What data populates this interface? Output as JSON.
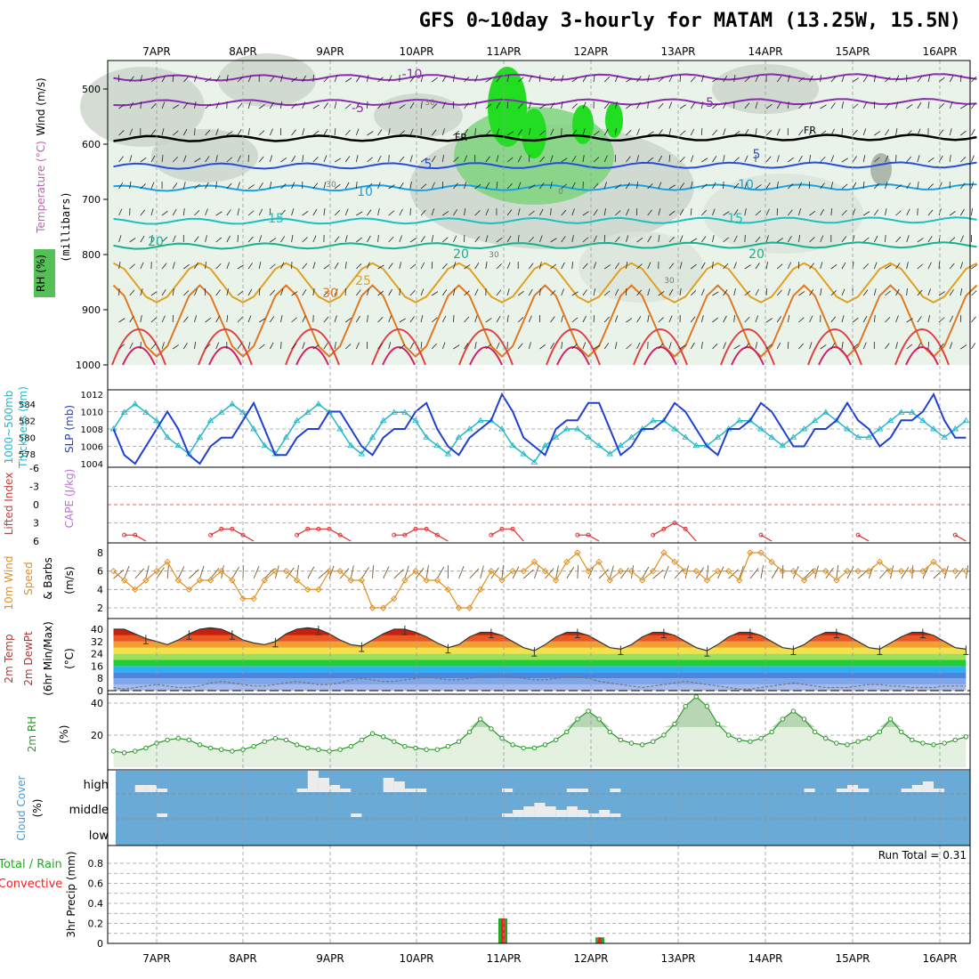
{
  "title": "GFS 0~10day 3-hourly for MATAM (13.25W, 15.5N)",
  "dates": [
    "7APR",
    "8APR",
    "9APR",
    "10APR",
    "11APR",
    "12APR",
    "13APR",
    "14APR",
    "15APR",
    "16APR"
  ],
  "colors": {
    "axis": "#000000",
    "grid": "#9a9a9a",
    "slp": "#1f3fd0",
    "thickness": "#22b8c8",
    "lifted": "#e03030",
    "cape": "#c070e0",
    "wind10": "#e09020",
    "rh": "#2a9a2a",
    "cloud_bg": "#6aaad6",
    "precip_total": "#22aa22",
    "precip_conv": "#ee2222"
  },
  "panels": {
    "upper": {
      "ylabel_1": "Wind (m/s)",
      "ylabel_2": "Temperature (°C)",
      "ylabel_3": "RH (%)",
      "ylabel_4": "(millibars)",
      "yticks": [
        500,
        600,
        700,
        800,
        900,
        1000
      ],
      "isotherm_labels": [
        "-10",
        "-5",
        "-5",
        "FR",
        "FR",
        "5",
        "5",
        "10",
        "10",
        "15",
        "15",
        "20",
        "20",
        "20",
        "25",
        "30"
      ],
      "rh_labels": [
        "30",
        "30",
        "30",
        "30",
        "0"
      ]
    },
    "slp": {
      "ylabel_1": "1000~500mb",
      "ylabel_2": "Thickness (dm)",
      "ylabel_3": "SLP (mb)",
      "left_ticks": [
        "584",
        "582",
        "580",
        "578"
      ],
      "right_ticks": [
        "1012",
        "1010",
        "1008",
        "1006",
        "1004"
      ]
    },
    "stability": {
      "ylabel_1": "Lifted Index",
      "ylabel_2": "CAPE (J/kg)",
      "ticks": [
        "-6",
        "-3",
        "0",
        "3",
        "6"
      ]
    },
    "wind10": {
      "ylabel_1": "10m Wind",
      "ylabel_2": "Speed",
      "ylabel_3": "& Barbs",
      "ylabel_4": "(m/s)",
      "ticks": [
        "8",
        "6",
        "4",
        "2"
      ]
    },
    "temp2m": {
      "ylabel_1": "2m Temp",
      "ylabel_2": "2m DewPt",
      "ylabel_3": "(6hr Min/Max)",
      "ylabel_4": "(°C)",
      "ticks": [
        "40",
        "32",
        "24",
        "16",
        "8",
        "0"
      ]
    },
    "rh2m": {
      "ylabel_1": "2m RH",
      "ylabel_2": "(%)",
      "ticks": [
        "40",
        "20"
      ]
    },
    "cloud": {
      "ylabel_1": "Cloud Cover",
      "ylabel_2": "(%)",
      "levels": [
        "high",
        "middle",
        "low"
      ]
    },
    "precip": {
      "ylabel_1": "Total / Rain",
      "ylabel_2": "Convective",
      "ylabel_3": "3hr Precip (mm)",
      "ticks": [
        "0.8",
        "0.6",
        "0.4",
        "0.2",
        "0"
      ],
      "run_total": "Run Total = 0.31"
    }
  },
  "chart_data": [
    {
      "type": "line",
      "title": "SLP and 1000~500mb Thickness",
      "series": [
        {
          "name": "SLP (mb)",
          "values": [
            1008,
            1005,
            1004,
            1006,
            1008,
            1010,
            1008,
            1005,
            1004,
            1006,
            1007,
            1007,
            1009,
            1011,
            1008,
            1005,
            1005,
            1007,
            1008,
            1008,
            1010,
            1010,
            1008,
            1006,
            1005,
            1007,
            1008,
            1008,
            1010,
            1011,
            1008,
            1006,
            1005,
            1007,
            1008,
            1009,
            1012,
            1010,
            1007,
            1006,
            1005,
            1008,
            1009,
            1009,
            1011,
            1011,
            1008,
            1005,
            1006,
            1008,
            1008,
            1009,
            1011,
            1010,
            1008,
            1006,
            1005,
            1008,
            1008,
            1009,
            1011,
            1010,
            1008,
            1006,
            1006,
            1008,
            1008,
            1009,
            1011,
            1009,
            1008,
            1006,
            1007,
            1009,
            1009,
            1010,
            1012,
            1009,
            1007,
            1007
          ]
        },
        {
          "name": "Thickness (dm)",
          "values": [
            581,
            583,
            584,
            583,
            582,
            580,
            579,
            578,
            580,
            582,
            583,
            584,
            583,
            581,
            579,
            578,
            580,
            582,
            583,
            584,
            583,
            581,
            579,
            578,
            580,
            582,
            583,
            583,
            582,
            580,
            579,
            578,
            580,
            581,
            582,
            582,
            581,
            579,
            578,
            577,
            579,
            580,
            581,
            581,
            580,
            579,
            578,
            579,
            580,
            581,
            582,
            582,
            581,
            580,
            579,
            579,
            580,
            581,
            582,
            582,
            581,
            580,
            579,
            580,
            581,
            582,
            583,
            582,
            581,
            580,
            580,
            581,
            582,
            583,
            583,
            582,
            581,
            580,
            581,
            582
          ]
        }
      ]
    },
    {
      "type": "line",
      "title": "Lifted Index",
      "series": [
        {
          "name": "Lifted Index",
          "values": [
            6,
            5,
            5,
            6,
            6,
            6,
            6,
            6,
            6,
            5,
            4,
            4,
            5,
            6,
            6,
            6,
            6,
            5,
            4,
            4,
            4,
            5,
            6,
            6,
            6,
            6,
            5,
            5,
            4,
            4,
            5,
            6,
            6,
            6,
            6,
            5,
            4,
            4,
            6,
            6,
            6,
            6,
            6,
            5,
            5,
            6,
            6,
            6,
            6,
            6,
            5,
            4,
            3,
            4,
            6,
            6,
            6,
            6,
            6,
            6,
            5,
            6,
            6,
            6,
            6,
            6,
            6,
            6,
            6,
            5,
            6,
            6,
            6,
            6,
            6,
            6,
            6,
            6,
            5,
            6
          ]
        }
      ]
    },
    {
      "type": "line",
      "title": "10m Wind Speed",
      "series": [
        {
          "name": "10m Wind Speed (m/s)",
          "values": [
            6,
            5,
            4,
            5,
            6,
            7,
            5,
            4,
            5,
            5,
            6,
            5,
            3,
            3,
            5,
            6,
            6,
            5,
            4,
            4,
            6,
            6,
            5,
            5,
            2,
            2,
            3,
            5,
            6,
            5,
            5,
            4,
            2,
            2,
            4,
            6,
            5,
            6,
            6,
            7,
            6,
            5,
            7,
            8,
            6,
            7,
            5,
            6,
            6,
            5,
            6,
            8,
            7,
            6,
            6,
            5,
            6,
            6,
            5,
            8,
            8,
            7,
            6,
            6,
            5,
            6,
            6,
            5,
            6,
            6,
            6,
            7,
            6,
            6,
            6,
            6,
            7,
            6,
            6,
            6
          ]
        }
      ]
    },
    {
      "type": "area",
      "title": "2m Temp / 2m DewPt",
      "series": [
        {
          "name": "2m Temp",
          "values": [
            40,
            40,
            37,
            34,
            32,
            30,
            33,
            37,
            40,
            41,
            40,
            37,
            33,
            31,
            30,
            32,
            37,
            40,
            41,
            40,
            37,
            33,
            30,
            29,
            33,
            37,
            40,
            40,
            38,
            35,
            31,
            28,
            30,
            35,
            38,
            38,
            36,
            32,
            28,
            26,
            30,
            35,
            38,
            38,
            36,
            32,
            28,
            27,
            30,
            35,
            38,
            38,
            36,
            32,
            28,
            26,
            30,
            35,
            38,
            38,
            36,
            32,
            28,
            27,
            30,
            35,
            38,
            38,
            36,
            32,
            28,
            27,
            31,
            35,
            38,
            38,
            36,
            32,
            28,
            27
          ]
        },
        {
          "name": "2m DewPt",
          "values": [
            2,
            1,
            2,
            3,
            4,
            3,
            2,
            2,
            3,
            5,
            6,
            5,
            4,
            3,
            3,
            4,
            5,
            6,
            5,
            4,
            4,
            5,
            7,
            8,
            7,
            6,
            6,
            7,
            8,
            9,
            8,
            7,
            7,
            8,
            9,
            10,
            10,
            9,
            8,
            7,
            7,
            8,
            9,
            9,
            8,
            6,
            5,
            4,
            3,
            2,
            3,
            4,
            5,
            6,
            5,
            4,
            3,
            2,
            1,
            1,
            2,
            3,
            4,
            5,
            4,
            3,
            2,
            2,
            2,
            3,
            4,
            4,
            3,
            3,
            2,
            2,
            2,
            3,
            3,
            3
          ]
        }
      ]
    },
    {
      "type": "area",
      "title": "2m RH",
      "series": [
        {
          "name": "2m RH (%)",
          "values": [
            10,
            9,
            10,
            12,
            15,
            17,
            18,
            17,
            14,
            12,
            11,
            10,
            11,
            13,
            16,
            18,
            17,
            14,
            12,
            11,
            10,
            11,
            13,
            17,
            21,
            19,
            16,
            13,
            12,
            11,
            11,
            13,
            16,
            22,
            30,
            24,
            18,
            14,
            12,
            12,
            14,
            17,
            22,
            30,
            35,
            30,
            22,
            17,
            15,
            14,
            16,
            20,
            27,
            38,
            44,
            38,
            27,
            20,
            17,
            16,
            18,
            22,
            30,
            35,
            30,
            22,
            18,
            15,
            14,
            16,
            18,
            22,
            30,
            22,
            17,
            15,
            14,
            15,
            17,
            19
          ]
        }
      ]
    },
    {
      "type": "bar",
      "title": "Cloud Cover",
      "series": [
        {
          "name": "high",
          "values": [
            0,
            0,
            10,
            10,
            5,
            0,
            0,
            0,
            0,
            0,
            0,
            0,
            0,
            0,
            0,
            0,
            0,
            5,
            30,
            20,
            10,
            5,
            0,
            0,
            0,
            20,
            15,
            5,
            5,
            0,
            0,
            0,
            0,
            0,
            0,
            0,
            5,
            0,
            0,
            0,
            0,
            0,
            5,
            5,
            0,
            0,
            5,
            0,
            0,
            0,
            0,
            0,
            0,
            0,
            0,
            0,
            0,
            0,
            0,
            0,
            0,
            0,
            0,
            0,
            5,
            0,
            0,
            5,
            10,
            5,
            0,
            0,
            0,
            5,
            10,
            15,
            5,
            0,
            0,
            0
          ]
        },
        {
          "name": "middle",
          "values": [
            0,
            0,
            0,
            0,
            5,
            0,
            0,
            0,
            0,
            0,
            0,
            0,
            0,
            0,
            0,
            0,
            0,
            0,
            0,
            0,
            0,
            0,
            5,
            0,
            0,
            0,
            0,
            0,
            0,
            0,
            0,
            0,
            0,
            0,
            0,
            0,
            5,
            10,
            15,
            20,
            15,
            10,
            15,
            10,
            5,
            10,
            5,
            0,
            0,
            0,
            0,
            0,
            0,
            0,
            0,
            0,
            0,
            0,
            0,
            0,
            0,
            0,
            0,
            0,
            0,
            0,
            0,
            0,
            0,
            0,
            0,
            0,
            0,
            0,
            0,
            0,
            0,
            0,
            0,
            0
          ]
        },
        {
          "name": "low",
          "values": [
            0,
            0,
            0,
            0,
            0,
            0,
            0,
            0,
            0,
            0,
            0,
            0,
            0,
            0,
            0,
            0,
            0,
            0,
            0,
            0,
            0,
            0,
            0,
            0,
            0,
            0,
            0,
            0,
            0,
            0,
            0,
            0,
            0,
            0,
            0,
            0,
            0,
            0,
            0,
            0,
            0,
            0,
            0,
            0,
            0,
            0,
            0,
            0,
            0,
            0,
            0,
            0,
            0,
            0,
            0,
            0,
            0,
            0,
            0,
            0,
            0,
            0,
            0,
            0,
            0,
            0,
            0,
            0,
            0,
            0,
            0,
            0,
            0,
            0,
            0,
            0,
            0,
            0,
            0,
            0
          ]
        }
      ]
    },
    {
      "type": "bar",
      "title": "3hr Precip",
      "series": [
        {
          "name": "Total / Rain",
          "values": [
            {
              "x": 36,
              "v": 0.25
            },
            {
              "x": 45,
              "v": 0.06
            }
          ]
        },
        {
          "name": "Convective",
          "values": [
            {
              "x": 36,
              "v": 0.25
            },
            {
              "x": 45,
              "v": 0.06
            }
          ]
        }
      ]
    }
  ]
}
